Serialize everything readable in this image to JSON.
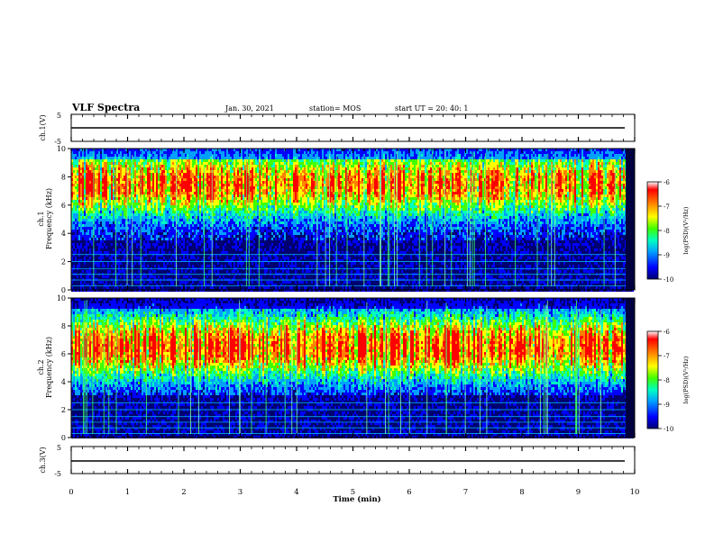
{
  "header": {
    "title": "VLF Spectra",
    "date": "Jan. 30, 2021",
    "station": "station= MOS",
    "start": "start  UT =   20: 40: 1"
  },
  "chart_data": [
    {
      "type": "line",
      "name": "ch1-voltage",
      "ylabel": "ch.1(V)",
      "ylim": [
        -5,
        5
      ],
      "yticks": [
        "5",
        "-5"
      ],
      "series": [
        {
          "x": [
            0,
            10
          ],
          "y": [
            0,
            0
          ]
        }
      ]
    },
    {
      "type": "heatmap",
      "name": "ch1-spectrogram",
      "ylabel": "ch.1\nFrequency (kHz)",
      "ylim": [
        0,
        10
      ],
      "yticks": [
        "0",
        "2",
        "4",
        "6",
        "8",
        "10"
      ],
      "band_center_khz": 7.5,
      "lower_edge_khz": 3.5
    },
    {
      "type": "heatmap",
      "name": "ch2-spectrogram",
      "ylabel": "ch.2\nFrequency (kHz)",
      "ylim": [
        0,
        10
      ],
      "yticks": [
        "0",
        "2",
        "4",
        "6",
        "8",
        "10"
      ],
      "band_center_khz": 6.5,
      "lower_edge_khz": 3.0
    },
    {
      "type": "line",
      "name": "ch3-voltage",
      "ylabel": "ch.3(V)",
      "ylim": [
        -5,
        5
      ],
      "yticks": [
        "5",
        "-5"
      ],
      "series": [
        {
          "x": [
            0,
            10
          ],
          "y": [
            0,
            0
          ]
        }
      ]
    }
  ],
  "xaxis": {
    "label": "Time  (min)",
    "range": [
      0,
      10
    ],
    "ticks": [
      "0",
      "1",
      "2",
      "3",
      "4",
      "5",
      "6",
      "7",
      "8",
      "9",
      "10"
    ]
  },
  "colorbar": {
    "label": "log(PSD)(V²/Hz)",
    "ticks": [
      "-6",
      "-7",
      "-8",
      "-9",
      "-10"
    ],
    "colors": [
      "#000070",
      "#0000ff",
      "#00a0ff",
      "#00ffc0",
      "#40ff00",
      "#ffff00",
      "#ff8000",
      "#ff0000",
      "#ffffff"
    ]
  }
}
